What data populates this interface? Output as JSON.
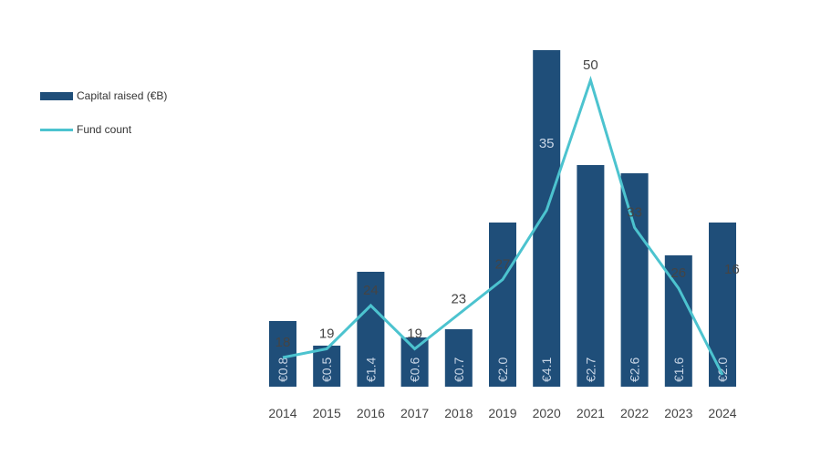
{
  "chart_data": {
    "type": "bar",
    "title": "",
    "xlabel": "",
    "ylabel": "",
    "categories": [
      "2014",
      "2015",
      "2016",
      "2017",
      "2018",
      "2019",
      "2020",
      "2021",
      "2022",
      "2023",
      "2024"
    ],
    "series": [
      {
        "name": "Capital raised (€B)",
        "type": "bar",
        "values": [
          0.8,
          0.5,
          1.4,
          0.6,
          0.7,
          2.0,
          4.1,
          2.7,
          2.6,
          1.6,
          2.0
        ],
        "labels": [
          "€0.8",
          "€0.5",
          "€1.4",
          "€0.6",
          "€0.7",
          "€2.0",
          "€4.1",
          "€2.7",
          "€2.6",
          "€1.6",
          "€2.0"
        ]
      },
      {
        "name": "Fund count",
        "type": "line",
        "values": [
          18,
          19,
          24,
          19,
          23,
          27,
          35,
          50,
          33,
          26,
          16
        ],
        "labels": [
          "18",
          "19",
          "24",
          "19",
          "23",
          "27",
          "35",
          "50",
          "33",
          "26",
          "16"
        ]
      }
    ],
    "colors": {
      "bar": "#1f4e79",
      "line": "#4cc3cf",
      "bar_label": "#c9d6e6",
      "text": "#444444"
    },
    "legend": "top-left",
    "grid": false
  }
}
